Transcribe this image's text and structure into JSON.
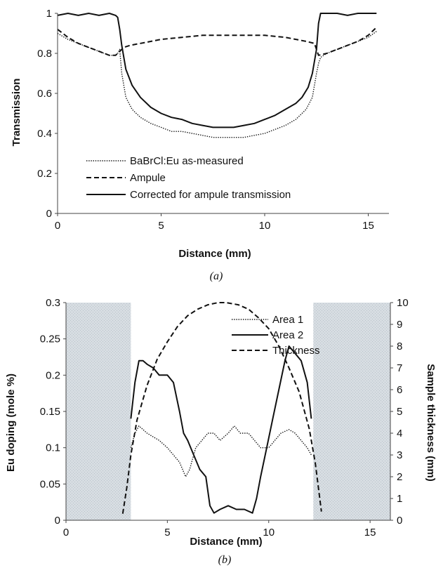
{
  "chart_data": [
    {
      "type": "line",
      "panel": "a",
      "caption": "(a)",
      "xlabel": "Distance (mm)",
      "ylabel": "Transmission",
      "xlim": [
        0,
        16
      ],
      "ylim": [
        0,
        1
      ],
      "xticks": [
        0,
        5,
        10,
        15
      ],
      "yticks": [
        0,
        0.2,
        0.4,
        0.6,
        0.8,
        1
      ],
      "ytick_labels": [
        "0",
        "0.2",
        "0.4",
        "0.6",
        "0.8",
        "1"
      ],
      "grid": false,
      "legend_position": "bottom-left",
      "series": [
        {
          "name": "BaBrCl:Eu as-measured",
          "style": "dotted",
          "x": [
            0,
            0.5,
            1,
            1.5,
            2,
            2.5,
            2.8,
            2.9,
            3.0,
            3.1,
            3.3,
            3.6,
            4,
            4.5,
            5,
            5.5,
            6,
            6.5,
            7,
            7.5,
            8,
            8.5,
            9,
            9.5,
            10,
            10.5,
            11,
            11.5,
            12,
            12.3,
            12.5,
            12.6,
            12.7,
            13,
            13.5,
            14,
            14.5,
            15,
            15.4
          ],
          "y": [
            0.9,
            0.87,
            0.85,
            0.83,
            0.81,
            0.79,
            0.79,
            0.8,
            0.82,
            0.7,
            0.58,
            0.52,
            0.48,
            0.45,
            0.43,
            0.41,
            0.41,
            0.4,
            0.39,
            0.38,
            0.38,
            0.38,
            0.38,
            0.39,
            0.4,
            0.42,
            0.44,
            0.47,
            0.52,
            0.58,
            0.7,
            0.75,
            0.78,
            0.8,
            0.82,
            0.84,
            0.86,
            0.88,
            0.91
          ]
        },
        {
          "name": "Ampule",
          "style": "dashed",
          "x": [
            0,
            0.5,
            1,
            1.5,
            2,
            2.5,
            2.8,
            3.0,
            3.2,
            3.5,
            4,
            5,
            6,
            7,
            8,
            9,
            10,
            11,
            12,
            12.4,
            12.6,
            13,
            13.5,
            14,
            14.5,
            15,
            15.4
          ],
          "y": [
            0.92,
            0.88,
            0.85,
            0.83,
            0.81,
            0.79,
            0.79,
            0.81,
            0.83,
            0.84,
            0.85,
            0.87,
            0.88,
            0.89,
            0.89,
            0.89,
            0.89,
            0.88,
            0.86,
            0.85,
            0.79,
            0.8,
            0.82,
            0.84,
            0.86,
            0.89,
            0.93
          ]
        },
        {
          "name": "Corrected for ampule transmission",
          "style": "solid",
          "x": [
            0,
            0.5,
            1,
            1.5,
            2,
            2.5,
            2.8,
            2.9,
            3.0,
            3.1,
            3.3,
            3.6,
            4,
            4.5,
            5,
            5.5,
            6,
            6.5,
            7,
            7.5,
            8,
            8.5,
            9,
            9.5,
            10,
            10.5,
            11,
            11.5,
            11.8,
            12.1,
            12.3,
            12.5,
            12.6,
            12.7,
            13,
            13.5,
            14,
            14.5,
            15,
            15.4
          ],
          "y": [
            0.99,
            1.0,
            0.99,
            1.0,
            0.99,
            1.0,
            0.99,
            0.98,
            0.92,
            0.84,
            0.72,
            0.64,
            0.58,
            0.53,
            0.5,
            0.48,
            0.47,
            0.45,
            0.44,
            0.43,
            0.43,
            0.43,
            0.44,
            0.45,
            0.47,
            0.49,
            0.52,
            0.55,
            0.58,
            0.63,
            0.7,
            0.82,
            0.95,
            1.0,
            1.0,
            1.0,
            0.99,
            1.0,
            1.0,
            1.0
          ]
        }
      ]
    },
    {
      "type": "line",
      "panel": "b",
      "caption": "(b)",
      "xlabel": "Distance (mm)",
      "ylabel": "Eu doping (mole %)",
      "ylabel_right": "Sample thickness (mm)",
      "xlim": [
        0,
        16
      ],
      "ylim": [
        0,
        0.3
      ],
      "ylim_right": [
        0,
        10
      ],
      "xticks": [
        0,
        5,
        10,
        15
      ],
      "yticks": [
        0,
        0.05,
        0.1,
        0.15,
        0.2,
        0.25,
        0.3
      ],
      "ytick_labels": [
        "0",
        "0.05",
        "0.1",
        "0.15",
        "0.2",
        "0.25",
        "0.3"
      ],
      "yticks_right": [
        0,
        1,
        2,
        3,
        4,
        5,
        6,
        7,
        8,
        9,
        10
      ],
      "ytick_labels_right": [
        "0",
        "1",
        "2",
        "3",
        "4",
        "5",
        "6",
        "7",
        "8",
        "9",
        "10"
      ],
      "grid": false,
      "legend_position": "top-center",
      "shaded_regions": [
        [
          0,
          3.2
        ],
        [
          12.2,
          16
        ]
      ],
      "series": [
        {
          "name": "Area 1",
          "style": "dotted",
          "axis": "left",
          "x": [
            3.2,
            3.4,
            3.6,
            3.8,
            4.0,
            4.3,
            4.6,
            5.0,
            5.3,
            5.6,
            5.9,
            6.1,
            6.4,
            6.7,
            7.0,
            7.3,
            7.6,
            8.0,
            8.3,
            8.6,
            9.0,
            9.3,
            9.6,
            10.0,
            10.3,
            10.6,
            11.0,
            11.3,
            11.6,
            11.9,
            12.1
          ],
          "y": [
            0.1,
            0.12,
            0.13,
            0.125,
            0.12,
            0.115,
            0.11,
            0.1,
            0.09,
            0.08,
            0.06,
            0.07,
            0.1,
            0.11,
            0.12,
            0.12,
            0.11,
            0.12,
            0.13,
            0.12,
            0.12,
            0.11,
            0.1,
            0.1,
            0.11,
            0.12,
            0.125,
            0.12,
            0.11,
            0.1,
            0.09
          ]
        },
        {
          "name": "Area 2",
          "style": "solid",
          "axis": "left",
          "x": [
            3.2,
            3.4,
            3.6,
            3.8,
            4.0,
            4.3,
            4.6,
            5.0,
            5.3,
            5.6,
            5.8,
            6.0,
            6.3,
            6.6,
            6.9,
            7.1,
            7.3,
            7.6,
            8.0,
            8.4,
            8.8,
            9.2,
            9.4,
            9.6,
            9.9,
            10.2,
            10.5,
            10.8,
            11.0,
            11.3,
            11.6,
            11.9,
            12.1
          ],
          "y": [
            0.14,
            0.19,
            0.22,
            0.22,
            0.215,
            0.21,
            0.2,
            0.2,
            0.19,
            0.15,
            0.12,
            0.11,
            0.09,
            0.07,
            0.06,
            0.02,
            0.01,
            0.015,
            0.02,
            0.015,
            0.015,
            0.01,
            0.03,
            0.06,
            0.1,
            0.14,
            0.18,
            0.22,
            0.24,
            0.23,
            0.22,
            0.19,
            0.14
          ]
        },
        {
          "name": "Thickness",
          "style": "dashed",
          "axis": "right",
          "x": [
            2.8,
            3.0,
            3.2,
            3.5,
            4.0,
            4.5,
            5.0,
            5.5,
            6.0,
            6.5,
            7.0,
            7.5,
            7.9,
            8.5,
            9.0,
            9.5,
            10.0,
            10.5,
            11.0,
            11.5,
            12.0,
            12.3,
            12.6
          ],
          "y": [
            0.3,
            1.5,
            3.0,
            4.6,
            6.2,
            7.4,
            8.2,
            8.9,
            9.4,
            9.7,
            9.9,
            10.0,
            10.0,
            9.9,
            9.7,
            9.3,
            8.8,
            8.0,
            7.0,
            5.9,
            4.2,
            2.6,
            0.4
          ]
        }
      ]
    }
  ]
}
